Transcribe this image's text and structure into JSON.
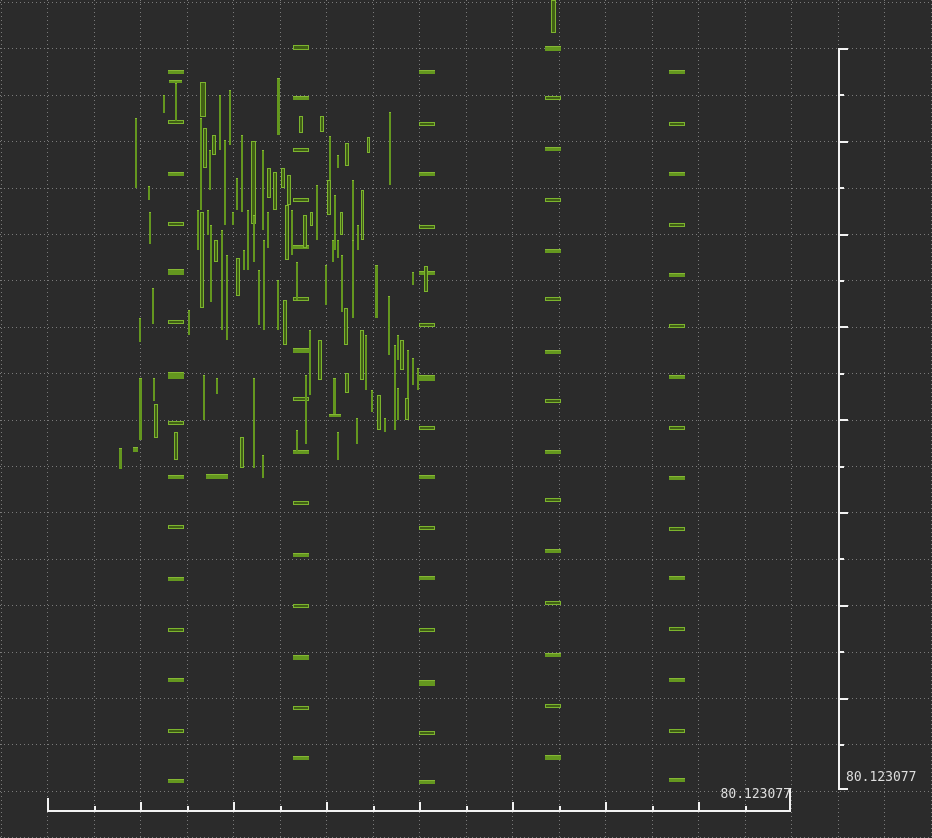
{
  "colors": {
    "background": "#2b2b2b",
    "grid_dots": "#7a7a7a",
    "axis": "#f2f2f2",
    "label_text": "#dedede",
    "mark_fill": "#64971f",
    "mark_edge": "#7cb42e",
    "mark_box_interior": "#415f15"
  },
  "chart_data": {
    "type": "candlestick",
    "x_end_label": "80.123077",
    "y_end_label": "80.123077",
    "grid": "dotted",
    "axes": {
      "x_position": "bottom",
      "y_position": "right",
      "x_ticks": "up",
      "y_ticks": "right"
    },
    "legend": "none",
    "marks_format": "[style(f=filled,o=outlined), x, y, width, height] in screen pixels",
    "marks": [
      [
        "f",
        168,
        70,
        16,
        4
      ],
      [
        "o",
        168,
        120,
        16,
        4
      ],
      [
        "f",
        168,
        172,
        16,
        4
      ],
      [
        "o",
        168,
        222,
        16,
        4
      ],
      [
        "f",
        168,
        269,
        16,
        6
      ],
      [
        "o",
        168,
        320,
        16,
        4
      ],
      [
        "f",
        168,
        372,
        16,
        7
      ],
      [
        "o",
        168,
        421,
        16,
        4
      ],
      [
        "f",
        168,
        475,
        16,
        4
      ],
      [
        "o",
        168,
        525,
        16,
        4
      ],
      [
        "f",
        168,
        577,
        16,
        4
      ],
      [
        "o",
        168,
        628,
        16,
        4
      ],
      [
        "f",
        168,
        678,
        16,
        4
      ],
      [
        "o",
        168,
        729,
        16,
        4
      ],
      [
        "f",
        168,
        779,
        16,
        4
      ],
      [
        "o",
        293,
        45,
        16,
        5
      ],
      [
        "f",
        293,
        96,
        16,
        4
      ],
      [
        "o",
        293,
        148,
        16,
        4
      ],
      [
        "o",
        293,
        198,
        16,
        4
      ],
      [
        "f",
        293,
        245,
        16,
        4
      ],
      [
        "o",
        293,
        297,
        16,
        4
      ],
      [
        "f",
        293,
        348,
        16,
        5
      ],
      [
        "o",
        293,
        397,
        16,
        4
      ],
      [
        "f",
        293,
        450,
        16,
        4
      ],
      [
        "o",
        293,
        501,
        16,
        4
      ],
      [
        "f",
        293,
        553,
        16,
        4
      ],
      [
        "o",
        293,
        604,
        16,
        4
      ],
      [
        "f",
        293,
        655,
        16,
        5
      ],
      [
        "o",
        293,
        706,
        16,
        4
      ],
      [
        "f",
        293,
        756,
        16,
        4
      ],
      [
        "f",
        419,
        70,
        16,
        4
      ],
      [
        "o",
        419,
        122,
        16,
        4
      ],
      [
        "f",
        419,
        172,
        16,
        4
      ],
      [
        "o",
        419,
        225,
        16,
        4
      ],
      [
        "f",
        419,
        271,
        16,
        4
      ],
      [
        "o",
        419,
        323,
        16,
        4
      ],
      [
        "f",
        419,
        375,
        16,
        6
      ],
      [
        "o",
        419,
        426,
        16,
        4
      ],
      [
        "f",
        419,
        475,
        16,
        4
      ],
      [
        "o",
        419,
        526,
        16,
        4
      ],
      [
        "f",
        419,
        576,
        16,
        4
      ],
      [
        "o",
        419,
        628,
        16,
        4
      ],
      [
        "f",
        419,
        680,
        16,
        6
      ],
      [
        "o",
        419,
        731,
        16,
        4
      ],
      [
        "f",
        419,
        780,
        16,
        4
      ],
      [
        "f",
        545,
        46,
        16,
        5
      ],
      [
        "o",
        545,
        96,
        16,
        4
      ],
      [
        "f",
        545,
        147,
        16,
        4
      ],
      [
        "o",
        545,
        198,
        16,
        4
      ],
      [
        "f",
        545,
        249,
        16,
        4
      ],
      [
        "o",
        545,
        297,
        16,
        4
      ],
      [
        "f",
        545,
        350,
        16,
        4
      ],
      [
        "o",
        545,
        399,
        16,
        4
      ],
      [
        "f",
        545,
        450,
        16,
        4
      ],
      [
        "o",
        545,
        498,
        16,
        4
      ],
      [
        "f",
        545,
        549,
        16,
        4
      ],
      [
        "o",
        545,
        601,
        16,
        4
      ],
      [
        "f",
        545,
        653,
        16,
        4
      ],
      [
        "o",
        545,
        704,
        16,
        4
      ],
      [
        "f",
        545,
        755,
        16,
        5
      ],
      [
        "f",
        669,
        70,
        16,
        4
      ],
      [
        "o",
        669,
        122,
        16,
        4
      ],
      [
        "f",
        669,
        172,
        16,
        4
      ],
      [
        "o",
        669,
        223,
        16,
        4
      ],
      [
        "f",
        669,
        273,
        16,
        4
      ],
      [
        "o",
        669,
        324,
        16,
        4
      ],
      [
        "f",
        669,
        375,
        16,
        4
      ],
      [
        "o",
        669,
        426,
        16,
        4
      ],
      [
        "f",
        669,
        476,
        16,
        4
      ],
      [
        "o",
        669,
        527,
        16,
        4
      ],
      [
        "f",
        669,
        576,
        16,
        4
      ],
      [
        "o",
        669,
        627,
        16,
        4
      ],
      [
        "f",
        669,
        678,
        16,
        4
      ],
      [
        "o",
        669,
        729,
        16,
        4
      ],
      [
        "f",
        669,
        778,
        16,
        4
      ],
      [
        "o",
        551,
        0,
        5,
        33
      ],
      [
        "f",
        135,
        118,
        2,
        70
      ],
      [
        "f",
        148,
        186,
        2,
        14
      ],
      [
        "f",
        163,
        95,
        2,
        18
      ],
      [
        "f",
        169,
        80,
        13,
        3
      ],
      [
        "f",
        175,
        83,
        2,
        38
      ],
      [
        "f",
        119,
        448,
        3,
        21
      ],
      [
        "f",
        133,
        447,
        5,
        5
      ],
      [
        "f",
        139,
        318,
        2,
        24
      ],
      [
        "f",
        139,
        378,
        3,
        62
      ],
      [
        "f",
        149,
        212,
        2,
        32
      ],
      [
        "f",
        152,
        288,
        2,
        36
      ],
      [
        "f",
        153,
        378,
        2,
        23
      ],
      [
        "o",
        154,
        404,
        4,
        34
      ],
      [
        "o",
        174,
        432,
        4,
        28
      ],
      [
        "o",
        200,
        82,
        6,
        35
      ],
      [
        "f",
        200,
        118,
        2,
        92
      ],
      [
        "o",
        203,
        128,
        4,
        40
      ],
      [
        "f",
        209,
        150,
        2,
        40
      ],
      [
        "o",
        212,
        135,
        4,
        20
      ],
      [
        "f",
        219,
        95,
        2,
        55
      ],
      [
        "f",
        224,
        140,
        2,
        85
      ],
      [
        "f",
        229,
        90,
        2,
        55
      ],
      [
        "f",
        236,
        178,
        2,
        32
      ],
      [
        "f",
        241,
        135,
        2,
        77
      ],
      [
        "o",
        251,
        141,
        5,
        83
      ],
      [
        "f",
        262,
        150,
        2,
        80
      ],
      [
        "o",
        267,
        168,
        4,
        30
      ],
      [
        "o",
        273,
        172,
        4,
        38
      ],
      [
        "o",
        281,
        168,
        4,
        20
      ],
      [
        "o",
        287,
        175,
        4,
        30
      ],
      [
        "f",
        277,
        78,
        3,
        57
      ],
      [
        "o",
        299,
        116,
        4,
        17
      ],
      [
        "o",
        320,
        116,
        4,
        16
      ],
      [
        "f",
        329,
        136,
        2,
        65
      ],
      [
        "f",
        337,
        155,
        2,
        13
      ],
      [
        "o",
        345,
        143,
        4,
        23
      ],
      [
        "o",
        367,
        137,
        3,
        16
      ],
      [
        "f",
        389,
        112,
        2,
        73
      ],
      [
        "f",
        197,
        210,
        2,
        40
      ],
      [
        "o",
        200,
        212,
        4,
        96
      ],
      [
        "f",
        207,
        210,
        2,
        25
      ],
      [
        "f",
        210,
        225,
        2,
        77
      ],
      [
        "o",
        214,
        240,
        4,
        22
      ],
      [
        "f",
        221,
        230,
        2,
        100
      ],
      [
        "f",
        226,
        255,
        2,
        85
      ],
      [
        "f",
        232,
        212,
        2,
        13
      ],
      [
        "o",
        236,
        258,
        4,
        38
      ],
      [
        "f",
        243,
        250,
        2,
        20
      ],
      [
        "f",
        247,
        210,
        2,
        60
      ],
      [
        "f",
        253,
        215,
        2,
        47
      ],
      [
        "f",
        258,
        270,
        2,
        55
      ],
      [
        "f",
        263,
        240,
        2,
        90
      ],
      [
        "f",
        267,
        212,
        2,
        36
      ],
      [
        "f",
        188,
        310,
        2,
        25
      ],
      [
        "o",
        285,
        205,
        4,
        55
      ],
      [
        "f",
        291,
        210,
        2,
        45
      ],
      [
        "o",
        303,
        215,
        4,
        33
      ],
      [
        "o",
        310,
        212,
        3,
        14
      ],
      [
        "f",
        316,
        185,
        2,
        55
      ],
      [
        "o",
        327,
        180,
        4,
        35
      ],
      [
        "f",
        334,
        195,
        2,
        55
      ],
      [
        "o",
        340,
        212,
        3,
        23
      ],
      [
        "f",
        352,
        180,
        2,
        80
      ],
      [
        "f",
        357,
        225,
        2,
        25
      ],
      [
        "o",
        361,
        190,
        3,
        50
      ],
      [
        "f",
        277,
        280,
        2,
        50
      ],
      [
        "o",
        283,
        300,
        4,
        45
      ],
      [
        "f",
        296,
        262,
        2,
        38
      ],
      [
        "f",
        309,
        330,
        2,
        65
      ],
      [
        "o",
        318,
        340,
        4,
        40
      ],
      [
        "f",
        325,
        265,
        2,
        40
      ],
      [
        "f",
        332,
        240,
        2,
        22
      ],
      [
        "f",
        337,
        240,
        2,
        18
      ],
      [
        "f",
        341,
        255,
        2,
        57
      ],
      [
        "o",
        344,
        308,
        4,
        37
      ],
      [
        "f",
        352,
        240,
        2,
        78
      ],
      [
        "o",
        360,
        330,
        4,
        50
      ],
      [
        "f",
        365,
        335,
        2,
        55
      ],
      [
        "f",
        375,
        265,
        3,
        53
      ],
      [
        "f",
        388,
        296,
        2,
        59
      ],
      [
        "o",
        400,
        340,
        4,
        30
      ],
      [
        "f",
        397,
        335,
        2,
        25
      ],
      [
        "f",
        394,
        345,
        2,
        85
      ],
      [
        "o",
        424,
        266,
        4,
        26
      ],
      [
        "f",
        412,
        272,
        2,
        13
      ],
      [
        "f",
        412,
        358,
        2,
        27
      ],
      [
        "f",
        417,
        368,
        2,
        22
      ],
      [
        "f",
        407,
        350,
        2,
        50
      ],
      [
        "f",
        203,
        375,
        2,
        45
      ],
      [
        "f",
        216,
        378,
        2,
        16
      ],
      [
        "o",
        240,
        437,
        4,
        31
      ],
      [
        "f",
        253,
        378,
        2,
        90
      ],
      [
        "f",
        206,
        474,
        22,
        5
      ],
      [
        "f",
        262,
        455,
        2,
        23
      ],
      [
        "f",
        296,
        430,
        2,
        22
      ],
      [
        "f",
        305,
        375,
        2,
        69
      ],
      [
        "f",
        333,
        378,
        3,
        38
      ],
      [
        "f",
        329,
        414,
        12,
        3
      ],
      [
        "f",
        337,
        432,
        2,
        28
      ],
      [
        "f",
        356,
        418,
        2,
        26
      ],
      [
        "o",
        345,
        373,
        4,
        20
      ],
      [
        "f",
        371,
        390,
        2,
        22
      ],
      [
        "o",
        377,
        395,
        4,
        35
      ],
      [
        "f",
        384,
        418,
        2,
        14
      ],
      [
        "f",
        397,
        388,
        2,
        32
      ],
      [
        "o",
        405,
        398,
        4,
        22
      ]
    ]
  }
}
